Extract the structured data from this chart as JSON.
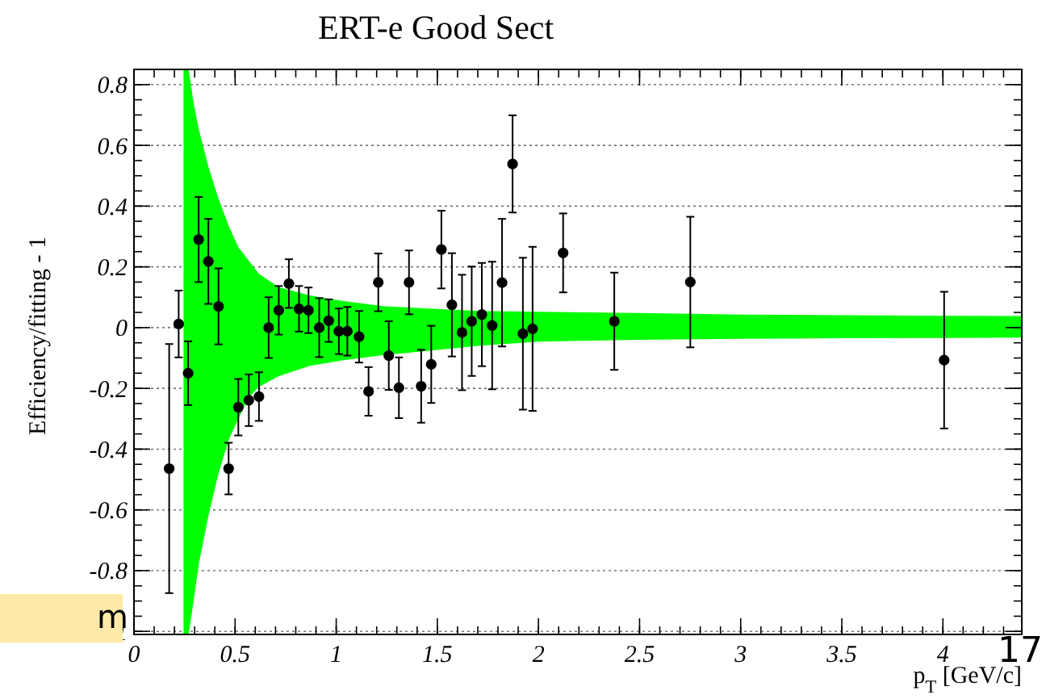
{
  "chart_data": {
    "type": "scatter",
    "title": "ERT-e Good Sect",
    "xlabel": "p$_{T}$ [GeV/c]",
    "ylabel": "Efficiency/fitting - 1",
    "annotations": [
      "m",
      "17"
    ],
    "xlim": [
      0,
      4.39
    ],
    "ylim": [
      -1.01,
      0.85
    ],
    "xticks": [
      0,
      0.5,
      1,
      1.5,
      2,
      2.5,
      3,
      3.5,
      4
    ],
    "yticks": [
      -1,
      -0.8,
      -0.6,
      -0.4,
      -0.2,
      0,
      0.2,
      0.4,
      0.6,
      0.8
    ],
    "grid": "y",
    "marker": "circle",
    "series": [
      {
        "type": "area",
        "color": "#00ff00",
        "x": [
          0.245,
          0.27,
          0.295,
          0.32,
          0.368,
          0.418,
          0.468,
          0.516,
          0.568,
          0.618,
          0.716,
          0.87,
          1.03,
          1.24,
          1.4,
          1.7,
          2.0,
          2.5,
          3.0,
          3.5,
          4.0,
          4.39
        ],
        "values": [
          null,
          null,
          null,
          null,
          null,
          null,
          null,
          null,
          null,
          null,
          null,
          null,
          null,
          null,
          null,
          null,
          null,
          null,
          null,
          null,
          null,
          null
        ],
        "upper": [
          0.85,
          0.85,
          0.74,
          0.655,
          0.53,
          0.425,
          0.336,
          0.265,
          0.22,
          0.177,
          0.133,
          0.106,
          0.088,
          0.07,
          0.065,
          0.055,
          0.052,
          0.048,
          0.043,
          0.041,
          0.039,
          0.038
        ],
        "lower": [
          -1.01,
          -1.01,
          -0.9,
          -0.78,
          -0.62,
          -0.48,
          -0.37,
          -0.3,
          -0.23,
          -0.195,
          -0.16,
          -0.126,
          -0.108,
          -0.09,
          -0.08,
          -0.06,
          -0.046,
          -0.04,
          -0.037,
          -0.035,
          -0.034,
          -0.033
        ]
      },
      {
        "color": "#000000",
        "x": [
          0.174,
          0.221,
          0.268,
          0.32,
          0.368,
          0.418,
          0.468,
          0.516,
          0.568,
          0.618,
          0.666,
          0.716,
          0.766,
          0.816,
          0.863,
          0.916,
          0.963,
          1.013,
          1.055,
          1.113,
          1.16,
          1.208,
          1.26,
          1.31,
          1.36,
          1.42,
          1.47,
          1.52,
          1.572,
          1.622,
          1.67,
          1.72,
          1.771,
          1.82,
          1.872,
          1.923,
          1.971,
          2.122,
          2.375,
          2.751,
          4.006
        ],
        "values": [
          -0.464,
          0.012,
          -0.15,
          0.29,
          0.218,
          0.07,
          -0.464,
          -0.262,
          -0.239,
          -0.227,
          0.0,
          0.057,
          0.145,
          0.062,
          0.057,
          0.0,
          0.023,
          -0.012,
          -0.012,
          -0.03,
          -0.21,
          0.149,
          -0.092,
          -0.198,
          0.149,
          -0.193,
          -0.121,
          0.257,
          0.075,
          -0.016,
          0.021,
          0.043,
          0.007,
          0.148,
          0.539,
          -0.02,
          -0.004,
          0.246,
          0.021,
          0.15,
          -0.107
        ],
        "errors": [
          0.41,
          0.11,
          0.105,
          0.14,
          0.14,
          0.125,
          0.085,
          0.093,
          0.085,
          0.08,
          0.1,
          0.08,
          0.08,
          0.075,
          0.075,
          0.097,
          0.07,
          0.075,
          0.08,
          0.085,
          0.08,
          0.095,
          0.113,
          0.1,
          0.105,
          0.12,
          0.127,
          0.128,
          0.17,
          0.19,
          0.18,
          0.17,
          0.21,
          0.21,
          0.16,
          0.25,
          0.27,
          0.13,
          0.16,
          0.215,
          0.225
        ]
      }
    ]
  }
}
